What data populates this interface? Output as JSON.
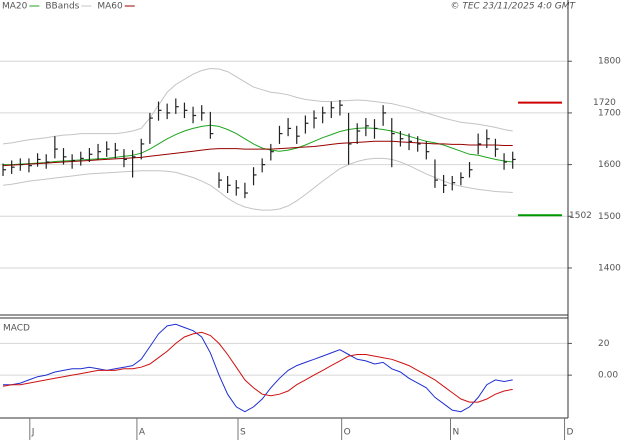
{
  "chart_data": [
    {
      "type": "ohlc",
      "source": "© TEC 23/11/2025 4:0 GMT",
      "x": [
        0,
        1,
        2,
        3,
        4,
        5,
        6,
        7,
        8,
        9,
        10,
        11,
        12,
        13,
        14,
        15,
        16,
        17,
        18,
        19,
        20,
        21,
        22,
        23,
        24,
        25,
        26,
        27,
        28,
        29,
        30,
        31,
        32,
        33,
        34,
        35,
        36,
        37,
        38,
        39,
        40,
        41,
        42,
        43,
        44,
        45,
        46,
        47,
        48,
        49,
        50,
        51,
        52,
        53,
        54,
        55,
        56,
        57,
        58,
        59
      ],
      "xlim": [
        -0.35,
        65.4
      ],
      "high": [
        1602,
        1608,
        1612,
        1612,
        1622,
        1620,
        1655,
        1632,
        1620,
        1625,
        1632,
        1640,
        1645,
        1642,
        1630,
        1628,
        1650,
        1700,
        1722,
        1718,
        1728,
        1720,
        1712,
        1715,
        1702,
        1585,
        1578,
        1570,
        1565,
        1595,
        1612,
        1640,
        1675,
        1690,
        1675,
        1695,
        1705,
        1712,
        1722,
        1725,
        1700,
        1680,
        1690,
        1688,
        1715,
        1690,
        1665,
        1660,
        1655,
        1645,
        1610,
        1580,
        1578,
        1585,
        1605,
        1660,
        1668,
        1650,
        1622,
        1625
      ],
      "low": [
        1578,
        1582,
        1588,
        1585,
        1596,
        1592,
        1612,
        1600,
        1592,
        1598,
        1605,
        1610,
        1615,
        1612,
        1595,
        1575,
        1610,
        1640,
        1685,
        1688,
        1698,
        1690,
        1680,
        1685,
        1650,
        1555,
        1545,
        1540,
        1535,
        1560,
        1585,
        1608,
        1640,
        1655,
        1640,
        1660,
        1670,
        1680,
        1690,
        1695,
        1600,
        1640,
        1655,
        1650,
        1675,
        1595,
        1635,
        1628,
        1625,
        1610,
        1555,
        1545,
        1550,
        1560,
        1575,
        1620,
        1632,
        1615,
        1590,
        1592
      ],
      "close": [
        1590,
        1595,
        1600,
        1598,
        1610,
        1605,
        1630,
        1615,
        1608,
        1612,
        1620,
        1625,
        1630,
        1628,
        1610,
        1615,
        1640,
        1690,
        1705,
        1700,
        1712,
        1705,
        1695,
        1700,
        1660,
        1570,
        1560,
        1555,
        1545,
        1580,
        1600,
        1625,
        1660,
        1670,
        1655,
        1680,
        1690,
        1700,
        1710,
        1715,
        1640,
        1665,
        1675,
        1670,
        1700,
        1660,
        1650,
        1645,
        1640,
        1625,
        1570,
        1560,
        1565,
        1575,
        1590,
        1640,
        1650,
        1630,
        1605,
        1610
      ],
      "color": "#222222",
      "series": [
        {
          "name": "MA20",
          "color": "#1fa51f",
          "values": [
            1600,
            1600,
            1601,
            1602,
            1603,
            1604,
            1606,
            1607,
            1608,
            1609,
            1610,
            1611,
            1612,
            1614,
            1616,
            1618,
            1622,
            1630,
            1640,
            1650,
            1658,
            1665,
            1670,
            1674,
            1676,
            1674,
            1668,
            1660,
            1650,
            1640,
            1632,
            1628,
            1626,
            1628,
            1632,
            1638,
            1645,
            1652,
            1658,
            1664,
            1668,
            1670,
            1671,
            1670,
            1668,
            1665,
            1660,
            1655,
            1650,
            1645,
            1642,
            1638,
            1632,
            1626,
            1620,
            1618,
            1614,
            1610,
            1607,
            1605
          ]
        },
        {
          "name": "BBands",
          "color": "#c4c4c4",
          "upper": [
            1640,
            1642,
            1645,
            1648,
            1650,
            1652,
            1655,
            1657,
            1658,
            1660,
            1660,
            1660,
            1660,
            1660,
            1662,
            1665,
            1670,
            1690,
            1715,
            1740,
            1755,
            1765,
            1775,
            1782,
            1786,
            1785,
            1780,
            1770,
            1760,
            1750,
            1745,
            1740,
            1738,
            1735,
            1730,
            1726,
            1724,
            1722,
            1722,
            1723,
            1724,
            1725,
            1724,
            1722,
            1720,
            1718,
            1714,
            1710,
            1705,
            1700,
            1695,
            1690,
            1686,
            1682,
            1680,
            1678,
            1675,
            1672,
            1668,
            1665
          ],
          "lower": [
            1560,
            1562,
            1565,
            1568,
            1570,
            1572,
            1574,
            1576,
            1578,
            1580,
            1582,
            1583,
            1584,
            1585,
            1586,
            1587,
            1588,
            1588,
            1588,
            1587,
            1585,
            1580,
            1575,
            1568,
            1560,
            1548,
            1535,
            1525,
            1518,
            1514,
            1512,
            1512,
            1514,
            1520,
            1530,
            1542,
            1555,
            1568,
            1580,
            1592,
            1600,
            1606,
            1610,
            1612,
            1612,
            1610,
            1605,
            1598,
            1590,
            1582,
            1575,
            1568,
            1562,
            1558,
            1555,
            1552,
            1550,
            1548,
            1547,
            1546
          ]
        },
        {
          "name": "MA60",
          "color": "#990000",
          "values": [
            1598,
            1599,
            1600,
            1601,
            1602,
            1603,
            1604,
            1605,
            1606,
            1607,
            1608,
            1609,
            1610,
            1611,
            1612,
            1613,
            1614,
            1616,
            1618,
            1620,
            1622,
            1624,
            1626,
            1628,
            1630,
            1631,
            1631,
            1631,
            1630,
            1630,
            1630,
            1630,
            1631,
            1632,
            1633,
            1634,
            1635,
            1637,
            1639,
            1641,
            1642,
            1643,
            1644,
            1645,
            1645,
            1645,
            1644,
            1643,
            1642,
            1641,
            1640,
            1640,
            1639,
            1639,
            1638,
            1638,
            1638,
            1638,
            1637,
            1637
          ]
        }
      ],
      "levels": [
        {
          "value": 1720,
          "color": "#cc0000"
        },
        {
          "value": 1502,
          "color": "#009900"
        }
      ],
      "ylim": [
        1309,
        1903
      ],
      "yticks": [
        1400,
        1500,
        1600,
        1700,
        1800
      ],
      "grid": true
    },
    {
      "type": "macd",
      "title": "MACD",
      "series": [
        {
          "color": "#1f2fd0",
          "values": [
            -6,
            -6,
            -5,
            -3,
            -1,
            0,
            2,
            3,
            4,
            4,
            5,
            4,
            3,
            4,
            5,
            6,
            10,
            18,
            26,
            31,
            32,
            30,
            28,
            24,
            14,
            0,
            -12,
            -20,
            -23,
            -20,
            -15,
            -8,
            -2,
            3,
            6,
            8,
            10,
            12,
            14,
            16,
            13,
            10,
            9,
            7,
            8,
            4,
            2,
            -2,
            -5,
            -8,
            -14,
            -18,
            -22,
            -23,
            -20,
            -14,
            -6,
            -3,
            -4,
            -3
          ]
        },
        {
          "color": "#d01010",
          "values": [
            -7,
            -6,
            -6,
            -5,
            -4,
            -3,
            -2,
            -1,
            0,
            1,
            2,
            3,
            3,
            3,
            4,
            4,
            5,
            7,
            11,
            15,
            20,
            24,
            26,
            27,
            25,
            20,
            13,
            5,
            -3,
            -8,
            -12,
            -13,
            -12,
            -10,
            -6,
            -3,
            0,
            3,
            6,
            9,
            12,
            13,
            13,
            12,
            11,
            10,
            8,
            6,
            3,
            0,
            -3,
            -7,
            -11,
            -15,
            -17,
            -17,
            -15,
            -12,
            -10,
            -9
          ]
        }
      ],
      "ylim": [
        -27,
        36
      ],
      "yticks": [
        {
          "value": 0,
          "label": "0.00"
        },
        20
      ],
      "xticks": [
        {
          "value": 3.1,
          "label": "J"
        },
        {
          "value": 15.5,
          "label": "A"
        },
        {
          "value": 27.2,
          "label": "S"
        },
        {
          "value": 39.2,
          "label": "O"
        },
        {
          "value": 51.8,
          "label": "N"
        },
        {
          "value": 65.0,
          "label": "D"
        }
      ],
      "grid": true
    }
  ]
}
